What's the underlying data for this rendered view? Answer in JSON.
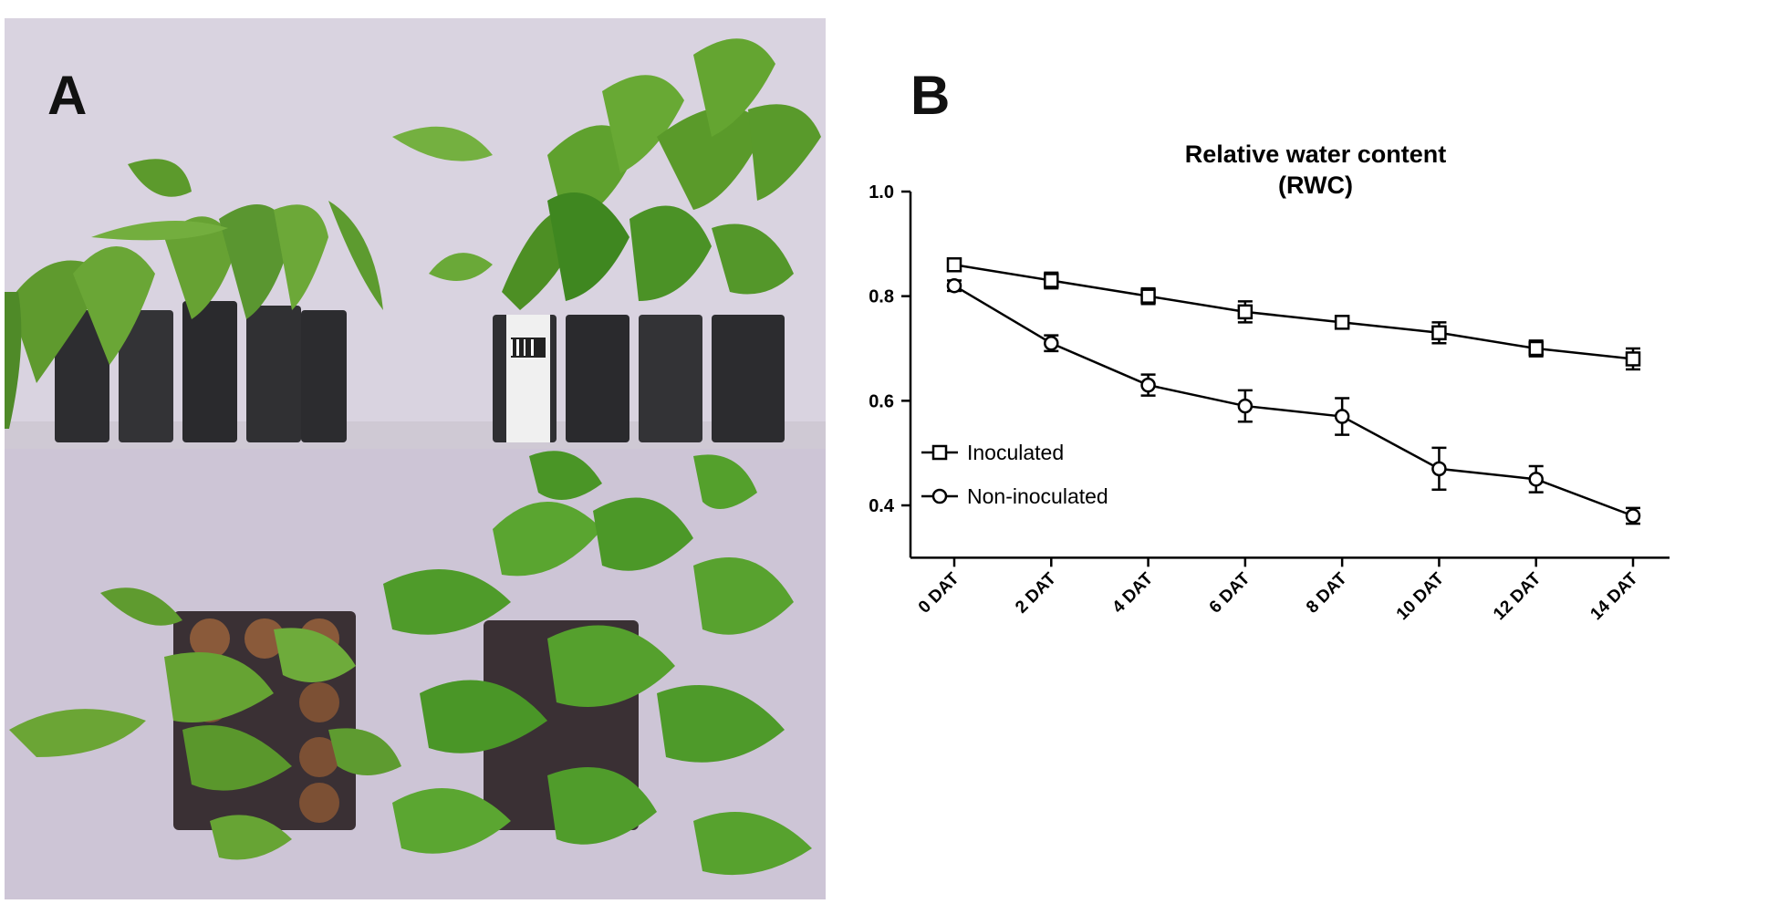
{
  "panel_a": {
    "label": "A",
    "description_icons": [
      "photo-wilted-plants",
      "photo-healthy-plants"
    ]
  },
  "panel_b": {
    "label": "B"
  },
  "chart_data": {
    "type": "line",
    "title": "Relative water content",
    "subtitle": "(RWC)",
    "xlabel": "",
    "ylabel": "",
    "categories": [
      "0 DAT",
      "2 DAT",
      "4 DAT",
      "6 DAT",
      "8 DAT",
      "10 DAT",
      "12 DAT",
      "14 DAT"
    ],
    "ylim": [
      0.3,
      1.0
    ],
    "yticks": [
      "0.4",
      "0.6",
      "0.8",
      "1.0"
    ],
    "ytick_values": [
      0.4,
      0.6,
      0.8,
      1.0
    ],
    "legend_position": "left-center",
    "grid": false,
    "series": [
      {
        "name": "Inoculated",
        "marker": "square",
        "values": [
          0.86,
          0.83,
          0.8,
          0.77,
          0.75,
          0.73,
          0.7,
          0.68
        ],
        "errors": [
          0.01,
          0.015,
          0.015,
          0.02,
          0.008,
          0.02,
          0.015,
          0.02
        ]
      },
      {
        "name": "Non-inoculated",
        "marker": "circle",
        "values": [
          0.82,
          0.71,
          0.63,
          0.59,
          0.57,
          0.47,
          0.45,
          0.38
        ],
        "errors": [
          0.01,
          0.015,
          0.02,
          0.03,
          0.035,
          0.04,
          0.025,
          0.015
        ]
      }
    ],
    "colors": {
      "line": "#000000",
      "marker_fill": "#ffffff"
    }
  }
}
